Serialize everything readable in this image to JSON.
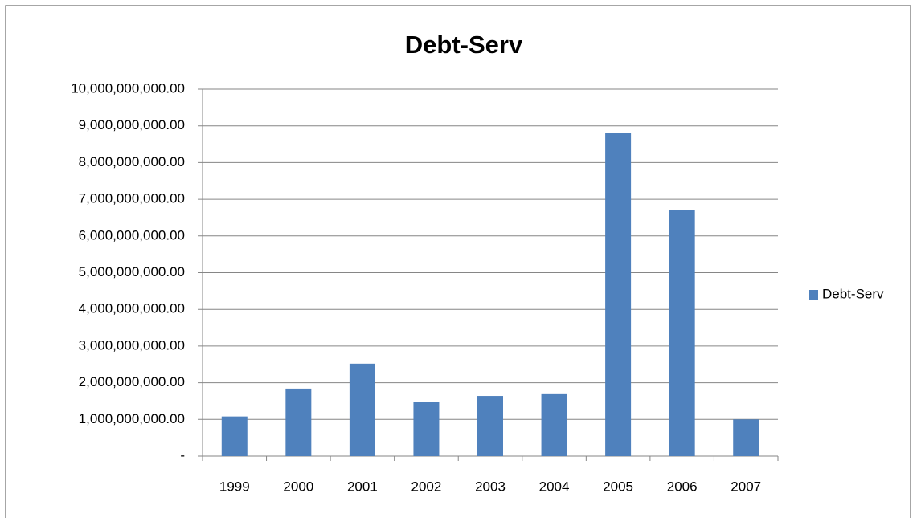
{
  "chart_data": {
    "type": "bar",
    "title": "Debt-Serv",
    "categories": [
      "1999",
      "2000",
      "2001",
      "2002",
      "2003",
      "2004",
      "2005",
      "2006",
      "2007"
    ],
    "series": [
      {
        "name": "Debt-Serv",
        "color": "#4f81bd",
        "values": [
          1080000000,
          1840000000,
          2520000000,
          1480000000,
          1640000000,
          1710000000,
          8800000000,
          6700000000,
          1000000000
        ]
      }
    ],
    "ylim": [
      0,
      10000000000
    ],
    "yticks": [
      {
        "value": 0,
        "label": "-"
      },
      {
        "value": 1000000000,
        "label": "1,000,000,000.00"
      },
      {
        "value": 2000000000,
        "label": "2,000,000,000.00"
      },
      {
        "value": 3000000000,
        "label": "3,000,000,000.00"
      },
      {
        "value": 4000000000,
        "label": "4,000,000,000.00"
      },
      {
        "value": 5000000000,
        "label": "5,000,000,000.00"
      },
      {
        "value": 6000000000,
        "label": "6,000,000,000.00"
      },
      {
        "value": 7000000000,
        "label": "7,000,000,000.00"
      },
      {
        "value": 8000000000,
        "label": "8,000,000,000.00"
      },
      {
        "value": 9000000000,
        "label": "9,000,000,000.00"
      },
      {
        "value": 10000000000,
        "label": "10,000,000,000.00"
      }
    ],
    "grid": true,
    "legend": "right"
  }
}
